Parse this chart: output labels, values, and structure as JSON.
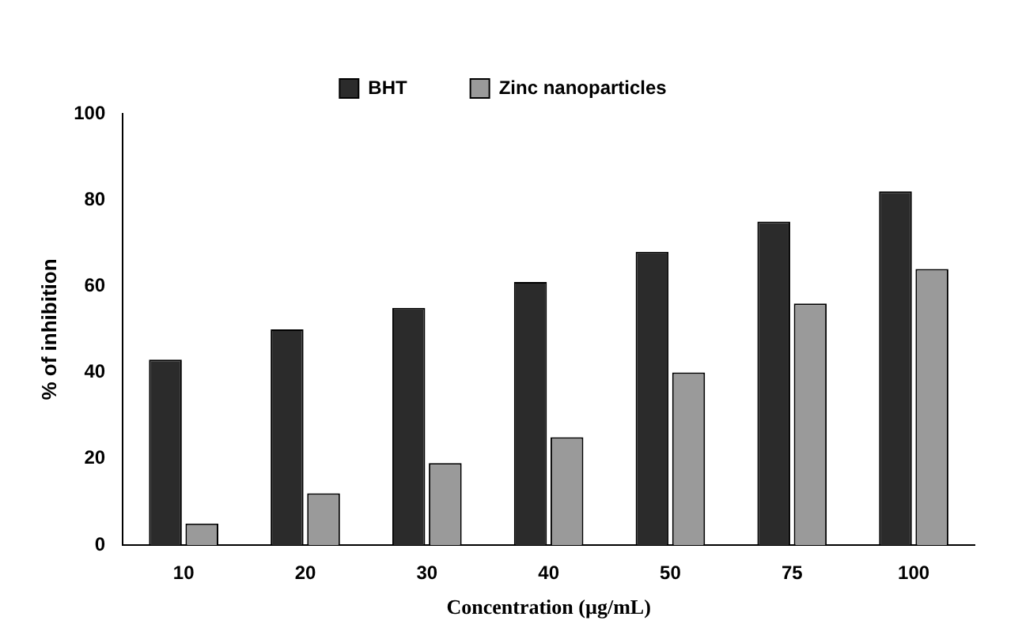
{
  "chart_data": {
    "type": "bar",
    "xlabel": "Concentration (µg/mL)",
    "ylabel": "% of inhibition",
    "categories": [
      "10",
      "20",
      "30",
      "40",
      "50",
      "75",
      "100"
    ],
    "series": [
      {
        "name": "BHT",
        "color": "#2b2b2b",
        "values": [
          43,
          50,
          55,
          61,
          68,
          75,
          82
        ]
      },
      {
        "name": "Zinc nanoparticles",
        "color": "#9a9a9a",
        "values": [
          5,
          12,
          19,
          25,
          40,
          56,
          64
        ]
      }
    ],
    "ylim": [
      0,
      100
    ],
    "yticks": [
      0,
      20,
      40,
      60,
      80,
      100
    ],
    "grid": false,
    "legend": "top"
  }
}
